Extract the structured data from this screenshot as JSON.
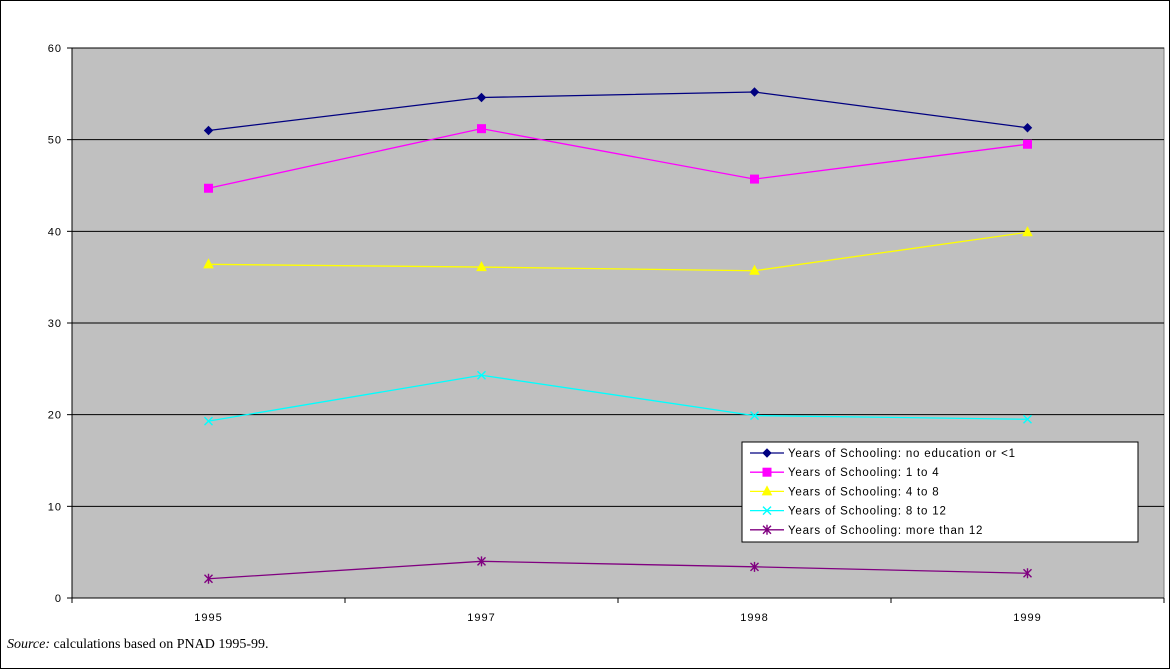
{
  "chart_data": {
    "type": "line",
    "categories": [
      "1995",
      "1997",
      "1998",
      "1999"
    ],
    "ylim": [
      0,
      60
    ],
    "yticks": [
      0,
      10,
      20,
      30,
      40,
      50,
      60
    ],
    "grid": true,
    "legend_position": "bottom-right",
    "colors": {
      "plot_background": "#c0c0c0",
      "gridline": "#000000"
    },
    "series": [
      {
        "name": "Years of Schooling: no education or <1",
        "values": [
          51.0,
          54.6,
          55.2,
          51.3
        ],
        "color": "#000080",
        "marker": "diamond"
      },
      {
        "name": "Years of Schooling: 1 to 4",
        "values": [
          44.7,
          51.2,
          45.7,
          49.5
        ],
        "color": "#ff00ff",
        "marker": "square"
      },
      {
        "name": "Years of Schooling: 4 to 8",
        "values": [
          36.4,
          36.1,
          35.7,
          39.9
        ],
        "color": "#ffff00",
        "marker": "triangle"
      },
      {
        "name": "Years of Schooling: 8 to 12",
        "values": [
          19.3,
          24.3,
          19.9,
          19.5
        ],
        "color": "#00ffff",
        "marker": "x"
      },
      {
        "name": "Years of Schooling: more than 12",
        "values": [
          2.1,
          4.0,
          3.4,
          2.7
        ],
        "color": "#800080",
        "marker": "star"
      }
    ]
  },
  "source": {
    "label": "Source:",
    "text": " calculations based on PNAD 1995-99."
  }
}
